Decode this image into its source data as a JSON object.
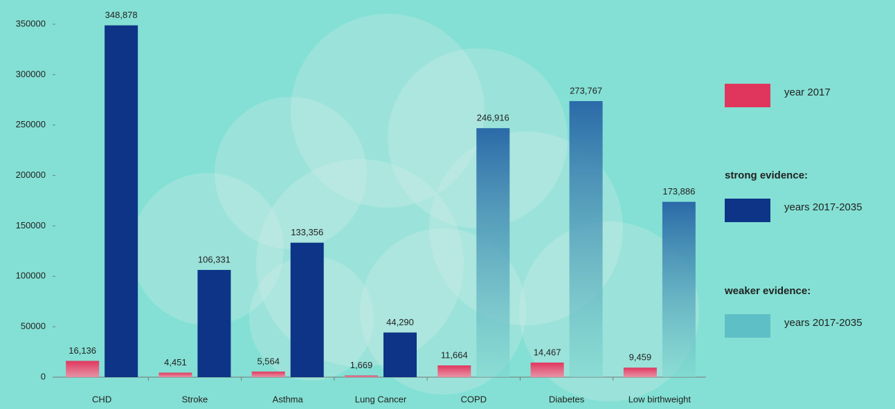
{
  "chart_data": {
    "type": "bar",
    "categories": [
      "CHD",
      "Stroke",
      "Asthma",
      "Lung Cancer",
      "COPD",
      "Diabetes",
      "Low birthweight"
    ],
    "series": [
      {
        "name": "year 2017",
        "color": "#e0365e",
        "values": [
          16136,
          4451,
          5564,
          1669,
          11664,
          14467,
          9459
        ],
        "value_labels": [
          "16,136",
          "4,451",
          "5,564",
          "1,669",
          "11,664",
          "14,467",
          "9,459"
        ]
      },
      {
        "group": "strong evidence:",
        "name": "years 2017-2035",
        "color": "#0d3486",
        "values": [
          348878,
          106331,
          133356,
          44290,
          null,
          null,
          null
        ],
        "value_labels": [
          "348,878",
          "106,331",
          "133,356",
          "44,290",
          null,
          null,
          null
        ]
      },
      {
        "group": "weaker evidence:",
        "name": "years 2017-2035",
        "color": "#2b6aa8",
        "values": [
          null,
          null,
          null,
          null,
          246916,
          273767,
          173886
        ],
        "value_labels": [
          null,
          null,
          null,
          null,
          "246,916",
          "273,767",
          "173,886"
        ]
      }
    ],
    "ylim": [
      0,
      350000
    ],
    "yticks": [
      0,
      50000,
      100000,
      150000,
      200000,
      250000,
      300000,
      350000
    ]
  }
}
